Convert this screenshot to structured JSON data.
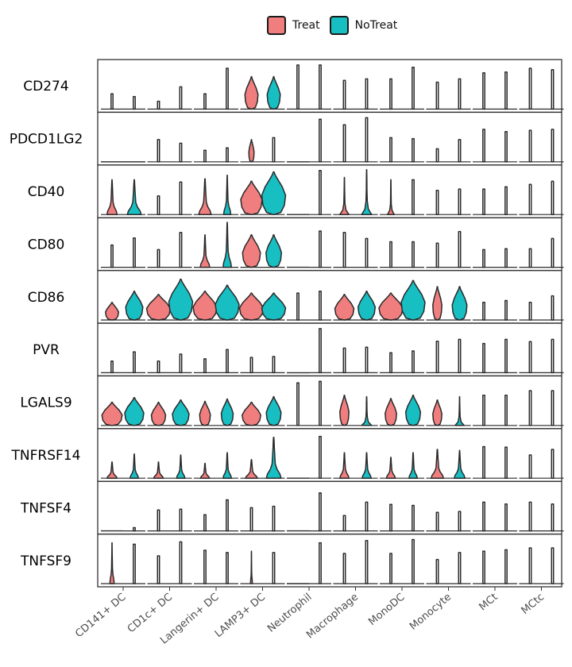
{
  "chart_data": {
    "type": "violin",
    "title": "",
    "xlabel": "",
    "ylabel": "",
    "legend_position": "top",
    "categories": [
      "CD141+ DC",
      "CD1c+ DC",
      "Langerin+ DC",
      "LAMP3+ DC",
      "Neutrophil",
      "Macrophage",
      "MonoDC",
      "Monocyte",
      "MCt",
      "MCtc"
    ],
    "series": [
      {
        "name": "Treat",
        "color": "#F07E7E"
      },
      {
        "name": "NoTreat",
        "color": "#17BEC2"
      }
    ],
    "genes": [
      {
        "name": "CD274",
        "heights": [
          [
            0.33,
            0.27
          ],
          [
            0.17,
            0.48
          ],
          [
            0.33,
            0.88
          ],
          [
            0.7,
            0.7
          ],
          [
            0.95,
            0.95
          ],
          [
            0.62,
            0.65
          ],
          [
            0.65,
            0.9
          ],
          [
            0.58,
            0.65
          ],
          [
            0.78,
            0.8
          ],
          [
            0.88,
            0.85
          ]
        ],
        "widths": [
          [
            0.02,
            0.02
          ],
          [
            0.02,
            0.02
          ],
          [
            0.02,
            0.02
          ],
          [
            0.55,
            0.55
          ],
          [
            0.02,
            0.02
          ],
          [
            0.02,
            0.02
          ],
          [
            0.02,
            0.02
          ],
          [
            0.02,
            0.02
          ],
          [
            0.02,
            0.02
          ],
          [
            0.02,
            0.02
          ]
        ],
        "shapes": [
          [
            "s",
            "s"
          ],
          [
            "s",
            "s"
          ],
          [
            "s",
            "s"
          ],
          [
            "b",
            "b"
          ],
          [
            "s",
            "s"
          ],
          [
            "s",
            "s"
          ],
          [
            "s",
            "s"
          ],
          [
            "s",
            "s"
          ],
          [
            "s",
            "s"
          ],
          [
            "s",
            "s"
          ]
        ]
      },
      {
        "name": "PDCD1LG2",
        "heights": [
          [
            0.0,
            0.0
          ],
          [
            0.48,
            0.4
          ],
          [
            0.25,
            0.3
          ],
          [
            0.48,
            0.52
          ],
          [
            0.0,
            0.92
          ],
          [
            0.8,
            0.95
          ],
          [
            0.52,
            0.5
          ],
          [
            0.28,
            0.48
          ],
          [
            0.7,
            0.65
          ],
          [
            0.68,
            0.7
          ]
        ],
        "widths": [
          [
            0.02,
            0.02
          ],
          [
            0.02,
            0.02
          ],
          [
            0.02,
            0.02
          ],
          [
            0.22,
            0.02
          ],
          [
            0.02,
            0.02
          ],
          [
            0.02,
            0.02
          ],
          [
            0.02,
            0.02
          ],
          [
            0.02,
            0.02
          ],
          [
            0.02,
            0.02
          ],
          [
            0.02,
            0.02
          ]
        ],
        "shapes": [
          [
            "s",
            "s"
          ],
          [
            "s",
            "s"
          ],
          [
            "s",
            "s"
          ],
          [
            "b",
            "s"
          ],
          [
            "s",
            "s"
          ],
          [
            "s",
            "s"
          ],
          [
            "s",
            "s"
          ],
          [
            "s",
            "s"
          ],
          [
            "s",
            "s"
          ],
          [
            "s",
            "s"
          ]
        ]
      },
      {
        "name": "CD40",
        "heights": [
          [
            0.75,
            0.75
          ],
          [
            0.4,
            0.7
          ],
          [
            0.77,
            0.85
          ],
          [
            0.72,
            0.92
          ],
          [
            0.0,
            0.95
          ],
          [
            0.8,
            0.97
          ],
          [
            0.75,
            0.75
          ],
          [
            0.52,
            0.55
          ],
          [
            0.55,
            0.6
          ],
          [
            0.65,
            0.72
          ]
        ],
        "widths": [
          [
            0.42,
            0.58
          ],
          [
            0.02,
            0.02
          ],
          [
            0.52,
            0.3
          ],
          [
            0.9,
            1.0
          ],
          [
            0.02,
            0.02
          ],
          [
            0.38,
            0.42
          ],
          [
            0.28,
            0.02
          ],
          [
            0.02,
            0.02
          ],
          [
            0.02,
            0.02
          ],
          [
            0.02,
            0.02
          ]
        ],
        "shapes": [
          [
            "v",
            "v"
          ],
          [
            "s",
            "s"
          ],
          [
            "v",
            "v"
          ],
          [
            "b",
            "b"
          ],
          [
            "s",
            "s"
          ],
          [
            "t",
            "t"
          ],
          [
            "t",
            "s"
          ],
          [
            "s",
            "s"
          ],
          [
            "s",
            "s"
          ],
          [
            "s",
            "s"
          ]
        ]
      },
      {
        "name": "CD80",
        "heights": [
          [
            0.48,
            0.63
          ],
          [
            0.38,
            0.75
          ],
          [
            0.7,
            0.97
          ],
          [
            0.7,
            0.7
          ],
          [
            0.0,
            0.78
          ],
          [
            0.75,
            0.62
          ],
          [
            0.55,
            0.55
          ],
          [
            0.52,
            0.77
          ],
          [
            0.38,
            0.4
          ],
          [
            0.4,
            0.62
          ]
        ],
        "widths": [
          [
            0.02,
            0.02
          ],
          [
            0.02,
            0.02
          ],
          [
            0.4,
            0.35
          ],
          [
            0.75,
            0.65
          ],
          [
            0.02,
            0.02
          ],
          [
            0.02,
            0.02
          ],
          [
            0.02,
            0.02
          ],
          [
            0.02,
            0.02
          ],
          [
            0.02,
            0.02
          ],
          [
            0.02,
            0.02
          ]
        ],
        "shapes": [
          [
            "s",
            "s"
          ],
          [
            "s",
            "s"
          ],
          [
            "v",
            "v"
          ],
          [
            "b",
            "b"
          ],
          [
            "s",
            "s"
          ],
          [
            "s",
            "s"
          ],
          [
            "s",
            "s"
          ],
          [
            "s",
            "s"
          ],
          [
            "s",
            "s"
          ],
          [
            "s",
            "s"
          ]
        ]
      },
      {
        "name": "CD86",
        "heights": [
          [
            0.38,
            0.62
          ],
          [
            0.55,
            0.88
          ],
          [
            0.62,
            0.75
          ],
          [
            0.58,
            0.58
          ],
          [
            0.58,
            0.62
          ],
          [
            0.55,
            0.62
          ],
          [
            0.58,
            0.85
          ],
          [
            0.72,
            0.72
          ],
          [
            0.38,
            0.42
          ],
          [
            0.38,
            0.52
          ]
        ],
        "widths": [
          [
            0.55,
            0.72
          ],
          [
            1.0,
            1.0
          ],
          [
            1.0,
            1.0
          ],
          [
            1.0,
            1.0
          ],
          [
            0.02,
            0.02
          ],
          [
            0.8,
            0.72
          ],
          [
            1.0,
            1.0
          ],
          [
            0.38,
            0.62
          ],
          [
            0.02,
            0.02
          ],
          [
            0.02,
            0.02
          ]
        ],
        "shapes": [
          [
            "b",
            "b"
          ],
          [
            "b",
            "b"
          ],
          [
            "b",
            "b"
          ],
          [
            "b",
            "b"
          ],
          [
            "s",
            "s"
          ],
          [
            "b",
            "b"
          ],
          [
            "b",
            "b"
          ],
          [
            "b",
            "b"
          ],
          [
            "s",
            "s"
          ],
          [
            "s",
            "s"
          ]
        ]
      },
      {
        "name": "PVR",
        "heights": [
          [
            0.25,
            0.45
          ],
          [
            0.25,
            0.4
          ],
          [
            0.3,
            0.5
          ],
          [
            0.33,
            0.35
          ],
          [
            0.0,
            0.95
          ],
          [
            0.53,
            0.55
          ],
          [
            0.43,
            0.47
          ],
          [
            0.68,
            0.72
          ],
          [
            0.63,
            0.72
          ],
          [
            0.67,
            0.72
          ]
        ],
        "widths": [
          [
            0.02,
            0.02
          ],
          [
            0.02,
            0.02
          ],
          [
            0.02,
            0.02
          ],
          [
            0.02,
            0.02
          ],
          [
            0.02,
            0.02
          ],
          [
            0.02,
            0.02
          ],
          [
            0.02,
            0.02
          ],
          [
            0.02,
            0.02
          ],
          [
            0.02,
            0.02
          ],
          [
            0.02,
            0.02
          ]
        ],
        "shapes": [
          [
            "s",
            "s"
          ],
          [
            "s",
            "s"
          ],
          [
            "s",
            "s"
          ],
          [
            "s",
            "s"
          ],
          [
            "s",
            "s"
          ],
          [
            "s",
            "s"
          ],
          [
            "s",
            "s"
          ],
          [
            "s",
            "s"
          ],
          [
            "s",
            "s"
          ],
          [
            "s",
            "s"
          ]
        ]
      },
      {
        "name": "LGALS9",
        "heights": [
          [
            0.5,
            0.6
          ],
          [
            0.5,
            0.55
          ],
          [
            0.52,
            0.57
          ],
          [
            0.5,
            0.62
          ],
          [
            0.92,
            0.95
          ],
          [
            0.65,
            0.62
          ],
          [
            0.58,
            0.65
          ],
          [
            0.55,
            0.62
          ],
          [
            0.65,
            0.65
          ],
          [
            0.75,
            0.75
          ]
        ],
        "widths": [
          [
            0.85,
            0.8
          ],
          [
            0.6,
            0.7
          ],
          [
            0.45,
            0.5
          ],
          [
            0.78,
            0.62
          ],
          [
            0.02,
            0.02
          ],
          [
            0.38,
            0.42
          ],
          [
            0.48,
            0.62
          ],
          [
            0.38,
            0.38
          ],
          [
            0.02,
            0.02
          ],
          [
            0.02,
            0.02
          ]
        ],
        "shapes": [
          [
            "b",
            "b"
          ],
          [
            "b",
            "b"
          ],
          [
            "b",
            "b"
          ],
          [
            "b",
            "b"
          ],
          [
            "s",
            "s"
          ],
          [
            "b",
            "t"
          ],
          [
            "b",
            "b"
          ],
          [
            "b",
            "t"
          ],
          [
            "s",
            "s"
          ],
          [
            "s",
            "s"
          ]
        ]
      },
      {
        "name": "TNFRSF14",
        "heights": [
          [
            0.35,
            0.52
          ],
          [
            0.35,
            0.5
          ],
          [
            0.32,
            0.55
          ],
          [
            0.4,
            0.88
          ],
          [
            0.0,
            0.9
          ],
          [
            0.55,
            0.55
          ],
          [
            0.45,
            0.55
          ],
          [
            0.62,
            0.6
          ],
          [
            0.68,
            0.67
          ],
          [
            0.5,
            0.62
          ]
        ],
        "widths": [
          [
            0.42,
            0.35
          ],
          [
            0.4,
            0.35
          ],
          [
            0.38,
            0.35
          ],
          [
            0.5,
            0.62
          ],
          [
            0.02,
            0.02
          ],
          [
            0.38,
            0.38
          ],
          [
            0.38,
            0.35
          ],
          [
            0.52,
            0.45
          ],
          [
            0.02,
            0.02
          ],
          [
            0.02,
            0.02
          ]
        ],
        "shapes": [
          [
            "v",
            "v"
          ],
          [
            "v",
            "v"
          ],
          [
            "v",
            "v"
          ],
          [
            "v",
            "v"
          ],
          [
            "s",
            "s"
          ],
          [
            "v",
            "v"
          ],
          [
            "v",
            "v"
          ],
          [
            "v",
            "v"
          ],
          [
            "s",
            "s"
          ],
          [
            "s",
            "s"
          ]
        ]
      },
      {
        "name": "TNFSF4",
        "heights": [
          [
            0.0,
            0.07
          ],
          [
            0.45,
            0.47
          ],
          [
            0.35,
            0.67
          ],
          [
            0.5,
            0.53
          ],
          [
            0.0,
            0.82
          ],
          [
            0.33,
            0.62
          ],
          [
            0.57,
            0.55
          ],
          [
            0.4,
            0.42
          ],
          [
            0.62,
            0.58
          ],
          [
            0.62,
            0.58
          ]
        ],
        "widths": [
          [
            0.02,
            0.02
          ],
          [
            0.02,
            0.02
          ],
          [
            0.02,
            0.02
          ],
          [
            0.02,
            0.02
          ],
          [
            0.02,
            0.02
          ],
          [
            0.02,
            0.02
          ],
          [
            0.02,
            0.02
          ],
          [
            0.02,
            0.02
          ],
          [
            0.02,
            0.02
          ],
          [
            0.02,
            0.02
          ]
        ],
        "shapes": [
          [
            "s",
            "s"
          ],
          [
            "s",
            "s"
          ],
          [
            "s",
            "s"
          ],
          [
            "s",
            "s"
          ],
          [
            "s",
            "s"
          ],
          [
            "s",
            "s"
          ],
          [
            "s",
            "s"
          ],
          [
            "s",
            "s"
          ],
          [
            "s",
            "s"
          ],
          [
            "s",
            "s"
          ]
        ]
      },
      {
        "name": "TNFSF9",
        "heights": [
          [
            0.88,
            0.85
          ],
          [
            0.6,
            0.9
          ],
          [
            0.72,
            0.67
          ],
          [
            0.7,
            0.67
          ],
          [
            0.0,
            0.88
          ],
          [
            0.65,
            0.93
          ],
          [
            0.65,
            0.95
          ],
          [
            0.52,
            0.67
          ],
          [
            0.7,
            0.73
          ],
          [
            0.77,
            0.77
          ]
        ],
        "widths": [
          [
            0.18,
            0.02
          ],
          [
            0.02,
            0.02
          ],
          [
            0.02,
            0.02
          ],
          [
            0.08,
            0.02
          ],
          [
            0.02,
            0.02
          ],
          [
            0.02,
            0.02
          ],
          [
            0.02,
            0.02
          ],
          [
            0.02,
            0.02
          ],
          [
            0.02,
            0.02
          ],
          [
            0.02,
            0.02
          ]
        ],
        "shapes": [
          [
            "v",
            "s"
          ],
          [
            "s",
            "s"
          ],
          [
            "s",
            "s"
          ],
          [
            "v",
            "s"
          ],
          [
            "s",
            "s"
          ],
          [
            "s",
            "s"
          ],
          [
            "s",
            "s"
          ],
          [
            "s",
            "s"
          ],
          [
            "s",
            "s"
          ],
          [
            "s",
            "s"
          ]
        ]
      }
    ]
  }
}
